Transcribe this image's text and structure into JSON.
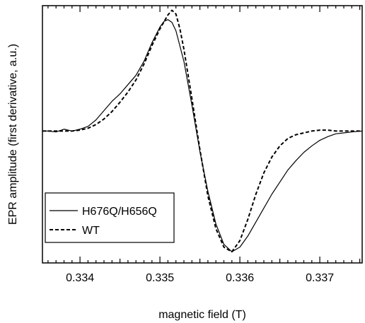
{
  "chart_data": {
    "type": "line",
    "title": "",
    "xlabel": "magnetic field (T)",
    "ylabel": "EPR amplitude (first derivative, a.u.)",
    "xlim": [
      0.33353,
      0.33753
    ],
    "ylim": [
      -1.42,
      1.35
    ],
    "xticks": [
      0.334,
      0.335,
      0.336,
      0.337
    ],
    "xtick_labels": [
      "0.334",
      "0.335",
      "0.336",
      "0.337"
    ],
    "yticks_visible": false,
    "grid": false,
    "legend_position": "lower-left",
    "series": [
      {
        "name": "H676Q/H656Q",
        "style": "solid",
        "color": "#000000",
        "x": [
          0.33353,
          0.3336,
          0.3337,
          0.3338,
          0.3339,
          0.334,
          0.3341,
          0.3342,
          0.3343,
          0.3344,
          0.3345,
          0.3346,
          0.3347,
          0.3348,
          0.3349,
          0.335,
          0.33505,
          0.3351,
          0.33515,
          0.3352,
          0.3353,
          0.3354,
          0.3355,
          0.3356,
          0.3357,
          0.3358,
          0.3359,
          0.336,
          0.3361,
          0.3362,
          0.3363,
          0.3364,
          0.3365,
          0.3366,
          0.3367,
          0.3368,
          0.3369,
          0.337,
          0.3371,
          0.3372,
          0.3373,
          0.3374,
          0.33753
        ],
        "y": [
          0.0,
          0.0,
          -0.01,
          0.02,
          0.0,
          0.02,
          0.05,
          0.12,
          0.22,
          0.32,
          0.4,
          0.5,
          0.6,
          0.75,
          0.95,
          1.12,
          1.18,
          1.2,
          1.17,
          1.08,
          0.75,
          0.28,
          -0.22,
          -0.65,
          -1.0,
          -1.22,
          -1.3,
          -1.25,
          -1.13,
          -0.98,
          -0.83,
          -0.68,
          -0.55,
          -0.42,
          -0.32,
          -0.23,
          -0.16,
          -0.1,
          -0.06,
          -0.03,
          -0.02,
          -0.01,
          0.0
        ]
      },
      {
        "name": "WT",
        "style": "dashed",
        "color": "#000000",
        "x": [
          0.33353,
          0.3336,
          0.3337,
          0.3338,
          0.3339,
          0.334,
          0.3341,
          0.3342,
          0.3343,
          0.3344,
          0.3345,
          0.3346,
          0.3347,
          0.3348,
          0.3349,
          0.335,
          0.3351,
          0.33515,
          0.3352,
          0.33525,
          0.3353,
          0.3354,
          0.3355,
          0.3356,
          0.3357,
          0.3358,
          0.3359,
          0.336,
          0.3361,
          0.3362,
          0.3363,
          0.3364,
          0.3365,
          0.3366,
          0.3367,
          0.3368,
          0.3369,
          0.337,
          0.3371,
          0.3372,
          0.33753
        ],
        "y": [
          0.0,
          0.0,
          0.0,
          0.0,
          0.0,
          0.01,
          0.03,
          0.07,
          0.13,
          0.21,
          0.31,
          0.42,
          0.55,
          0.72,
          0.92,
          1.1,
          1.25,
          1.3,
          1.26,
          1.1,
          0.88,
          0.35,
          -0.2,
          -0.7,
          -1.05,
          -1.25,
          -1.3,
          -1.18,
          -0.95,
          -0.68,
          -0.45,
          -0.28,
          -0.16,
          -0.08,
          -0.04,
          -0.02,
          0.0,
          0.01,
          0.01,
          0.0,
          0.0
        ]
      }
    ]
  }
}
